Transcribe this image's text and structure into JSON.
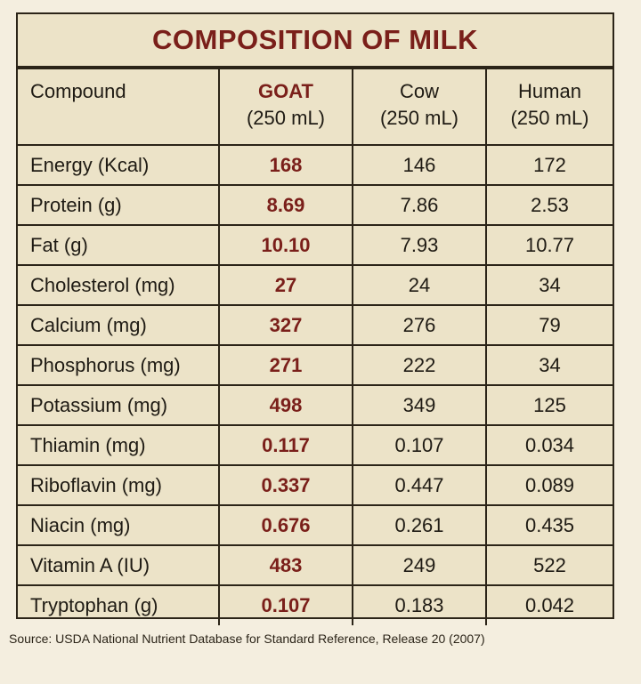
{
  "title": "COMPOSITION OF MILK",
  "header": {
    "compound": "Compound",
    "columns": [
      {
        "name": "GOAT",
        "unit": "(250 mL)"
      },
      {
        "name": "Cow",
        "unit": "(250 mL)"
      },
      {
        "name": "Human",
        "unit": "(250 mL)"
      }
    ]
  },
  "rows": [
    {
      "compound": "Energy (Kcal)",
      "goat": "168",
      "cow": "146",
      "human": "172"
    },
    {
      "compound": "Protein (g)",
      "goat": "8.69",
      "cow": "7.86",
      "human": "2.53"
    },
    {
      "compound": "Fat (g)",
      "goat": "10.10",
      "cow": "7.93",
      "human": "10.77"
    },
    {
      "compound": "Cholesterol (mg)",
      "goat": "27",
      "cow": "24",
      "human": "34"
    },
    {
      "compound": "Calcium (mg)",
      "goat": "327",
      "cow": "276",
      "human": "79"
    },
    {
      "compound": "Phosphorus (mg)",
      "goat": "271",
      "cow": "222",
      "human": "34"
    },
    {
      "compound": "Potassium (mg)",
      "goat": "498",
      "cow": "349",
      "human": "125"
    },
    {
      "compound": "Thiamin (mg)",
      "goat": "0.117",
      "cow": "0.107",
      "human": "0.034"
    },
    {
      "compound": "Riboflavin (mg)",
      "goat": "0.337",
      "cow": "0.447",
      "human": "0.089"
    },
    {
      "compound": "Niacin (mg)",
      "goat": "0.676",
      "cow": "0.261",
      "human": "0.435"
    },
    {
      "compound": "Vitamin A (IU)",
      "goat": "483",
      "cow": "249",
      "human": "522"
    },
    {
      "compound": "Tryptophan (g)",
      "goat": "0.107",
      "cow": "0.183",
      "human": "0.042"
    }
  ],
  "source": "Source: USDA National Nutrient Database for Standard Reference, Release 20 (2007)",
  "colors": {
    "accent": "#7a1f1a",
    "background": "#ece3c8",
    "border": "#2b2418"
  }
}
